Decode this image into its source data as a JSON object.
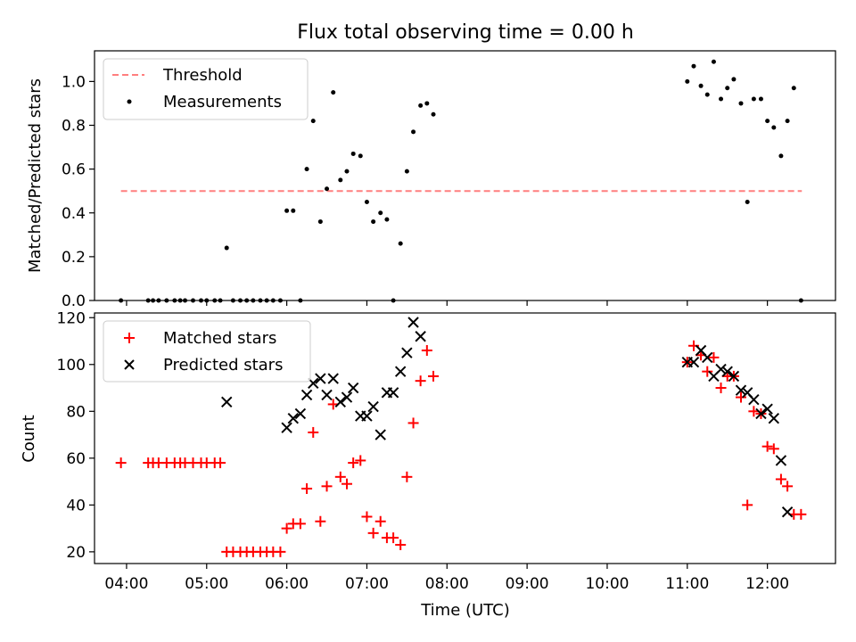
{
  "figure": {
    "title": "Flux total observing time = 0.00 h",
    "xlabel": "Time (UTC)",
    "x_tick_labels": [
      "04:00",
      "05:00",
      "06:00",
      "07:00",
      "08:00",
      "09:00",
      "10:00",
      "11:00",
      "12:00"
    ]
  },
  "chart_data": [
    {
      "type": "scatter",
      "ylabel": "Matched/Predicted stars",
      "ylim": [
        0,
        1.14
      ],
      "y_ticks": [
        0,
        0.2,
        0.4,
        0.6,
        0.8,
        1.0
      ],
      "y_tick_labels": [
        "0.0",
        "0.2",
        "0.4",
        "0.6",
        "0.8",
        "1.0"
      ],
      "xlim": [
        3.6,
        12.85
      ],
      "legend": {
        "placement": "top-left",
        "entries": [
          "Threshold",
          "Measurements"
        ]
      },
      "threshold": {
        "name": "Threshold",
        "value": 0.5,
        "x_range": [
          3.93,
          12.43
        ],
        "color": "#ff7f7f",
        "style": "dashed"
      },
      "series": [
        {
          "name": "Measurements",
          "marker": "dot",
          "color": "#000000",
          "points": [
            [
              3.93,
              0
            ],
            [
              4.27,
              0
            ],
            [
              4.33,
              0
            ],
            [
              4.4,
              0
            ],
            [
              4.5,
              0
            ],
            [
              4.6,
              0
            ],
            [
              4.67,
              0
            ],
            [
              4.73,
              0
            ],
            [
              4.83,
              0
            ],
            [
              4.93,
              0
            ],
            [
              5.0,
              0
            ],
            [
              5.1,
              0
            ],
            [
              5.17,
              0
            ],
            [
              5.25,
              0.24
            ],
            [
              5.33,
              0
            ],
            [
              5.42,
              0
            ],
            [
              5.5,
              0
            ],
            [
              5.58,
              0
            ],
            [
              5.67,
              0
            ],
            [
              5.75,
              0
            ],
            [
              5.83,
              0
            ],
            [
              5.92,
              0
            ],
            [
              6.0,
              0.41
            ],
            [
              6.08,
              0.41
            ],
            [
              6.17,
              0
            ],
            [
              6.25,
              0.6
            ],
            [
              6.33,
              0.82
            ],
            [
              6.42,
              0.36
            ],
            [
              6.5,
              0.51
            ],
            [
              6.58,
              0.95
            ],
            [
              6.67,
              0.55
            ],
            [
              6.75,
              0.59
            ],
            [
              6.83,
              0.67
            ],
            [
              6.92,
              0.66
            ],
            [
              7.0,
              0.45
            ],
            [
              7.08,
              0.36
            ],
            [
              7.17,
              0.4
            ],
            [
              7.25,
              0.37
            ],
            [
              7.33,
              0
            ],
            [
              7.42,
              0.26
            ],
            [
              7.5,
              0.59
            ],
            [
              7.58,
              0.77
            ],
            [
              7.67,
              0.89
            ],
            [
              7.75,
              0.9
            ],
            [
              7.83,
              0.85
            ],
            [
              11.0,
              1.0
            ],
            [
              11.08,
              1.07
            ],
            [
              11.17,
              0.98
            ],
            [
              11.25,
              0.94
            ],
            [
              11.33,
              1.09
            ],
            [
              11.42,
              0.92
            ],
            [
              11.5,
              0.97
            ],
            [
              11.58,
              1.01
            ],
            [
              11.67,
              0.9
            ],
            [
              11.75,
              0.45
            ],
            [
              11.83,
              0.92
            ],
            [
              11.92,
              0.92
            ],
            [
              12.0,
              0.82
            ],
            [
              12.08,
              0.79
            ],
            [
              12.17,
              0.66
            ],
            [
              12.25,
              0.82
            ],
            [
              12.33,
              0.97
            ],
            [
              12.42,
              0
            ]
          ]
        }
      ]
    },
    {
      "type": "scatter",
      "ylabel": "Count",
      "ylim": [
        15,
        122
      ],
      "y_ticks": [
        20,
        40,
        60,
        80,
        100,
        120
      ],
      "y_tick_labels": [
        "20",
        "40",
        "60",
        "80",
        "100",
        "120"
      ],
      "xlim": [
        3.6,
        12.85
      ],
      "legend": {
        "placement": "top-left",
        "entries": [
          "Matched stars",
          "Predicted stars"
        ]
      },
      "series": [
        {
          "name": "Matched stars",
          "marker": "plus",
          "color": "#ff0000",
          "points": [
            [
              3.93,
              58
            ],
            [
              4.27,
              58
            ],
            [
              4.33,
              58
            ],
            [
              4.4,
              58
            ],
            [
              4.5,
              58
            ],
            [
              4.6,
              58
            ],
            [
              4.67,
              58
            ],
            [
              4.73,
              58
            ],
            [
              4.83,
              58
            ],
            [
              4.93,
              58
            ],
            [
              5.0,
              58
            ],
            [
              5.1,
              58
            ],
            [
              5.17,
              58
            ],
            [
              5.25,
              20
            ],
            [
              5.33,
              20
            ],
            [
              5.42,
              20
            ],
            [
              5.5,
              20
            ],
            [
              5.58,
              20
            ],
            [
              5.67,
              20
            ],
            [
              5.75,
              20
            ],
            [
              5.83,
              20
            ],
            [
              5.92,
              20
            ],
            [
              6.0,
              30
            ],
            [
              6.08,
              32
            ],
            [
              6.17,
              32
            ],
            [
              6.25,
              47
            ],
            [
              6.33,
              71
            ],
            [
              6.42,
              33
            ],
            [
              6.5,
              48
            ],
            [
              6.58,
              83
            ],
            [
              6.67,
              52
            ],
            [
              6.75,
              49
            ],
            [
              6.83,
              58
            ],
            [
              6.92,
              59
            ],
            [
              7.0,
              35
            ],
            [
              7.08,
              28
            ],
            [
              7.17,
              33
            ],
            [
              7.25,
              26
            ],
            [
              7.33,
              26
            ],
            [
              7.42,
              23
            ],
            [
              7.5,
              52
            ],
            [
              7.58,
              75
            ],
            [
              7.67,
              93
            ],
            [
              7.75,
              106
            ],
            [
              7.83,
              95
            ],
            [
              11.0,
              101
            ],
            [
              11.08,
              108
            ],
            [
              11.17,
              104
            ],
            [
              11.25,
              97
            ],
            [
              11.33,
              103
            ],
            [
              11.42,
              90
            ],
            [
              11.5,
              95
            ],
            [
              11.58,
              95
            ],
            [
              11.67,
              86
            ],
            [
              11.75,
              40
            ],
            [
              11.83,
              80
            ],
            [
              11.92,
              79
            ],
            [
              12.0,
              65
            ],
            [
              12.08,
              64
            ],
            [
              12.17,
              51
            ],
            [
              12.25,
              48
            ],
            [
              12.33,
              36
            ],
            [
              12.42,
              36
            ]
          ]
        },
        {
          "name": "Predicted stars",
          "marker": "x",
          "color": "#000000",
          "points": [
            [
              5.25,
              84
            ],
            [
              6.0,
              73
            ],
            [
              6.08,
              77
            ],
            [
              6.17,
              79
            ],
            [
              6.25,
              87
            ],
            [
              6.33,
              92
            ],
            [
              6.42,
              94
            ],
            [
              6.5,
              87
            ],
            [
              6.58,
              94
            ],
            [
              6.67,
              84
            ],
            [
              6.75,
              86
            ],
            [
              6.83,
              90
            ],
            [
              6.92,
              78
            ],
            [
              7.0,
              78
            ],
            [
              7.08,
              82
            ],
            [
              7.17,
              70
            ],
            [
              7.25,
              88
            ],
            [
              7.33,
              88
            ],
            [
              7.42,
              97
            ],
            [
              7.5,
              105
            ],
            [
              7.58,
              118
            ],
            [
              7.67,
              112
            ],
            [
              11.0,
              101
            ],
            [
              11.08,
              101
            ],
            [
              11.17,
              106
            ],
            [
              11.25,
              103
            ],
            [
              11.33,
              95
            ],
            [
              11.42,
              98
            ],
            [
              11.5,
              97
            ],
            [
              11.58,
              95
            ],
            [
              11.67,
              89
            ],
            [
              11.75,
              88
            ],
            [
              11.83,
              85
            ],
            [
              11.92,
              79
            ],
            [
              12.0,
              81
            ],
            [
              12.08,
              77
            ],
            [
              12.17,
              59
            ],
            [
              12.25,
              37
            ]
          ]
        }
      ]
    }
  ]
}
